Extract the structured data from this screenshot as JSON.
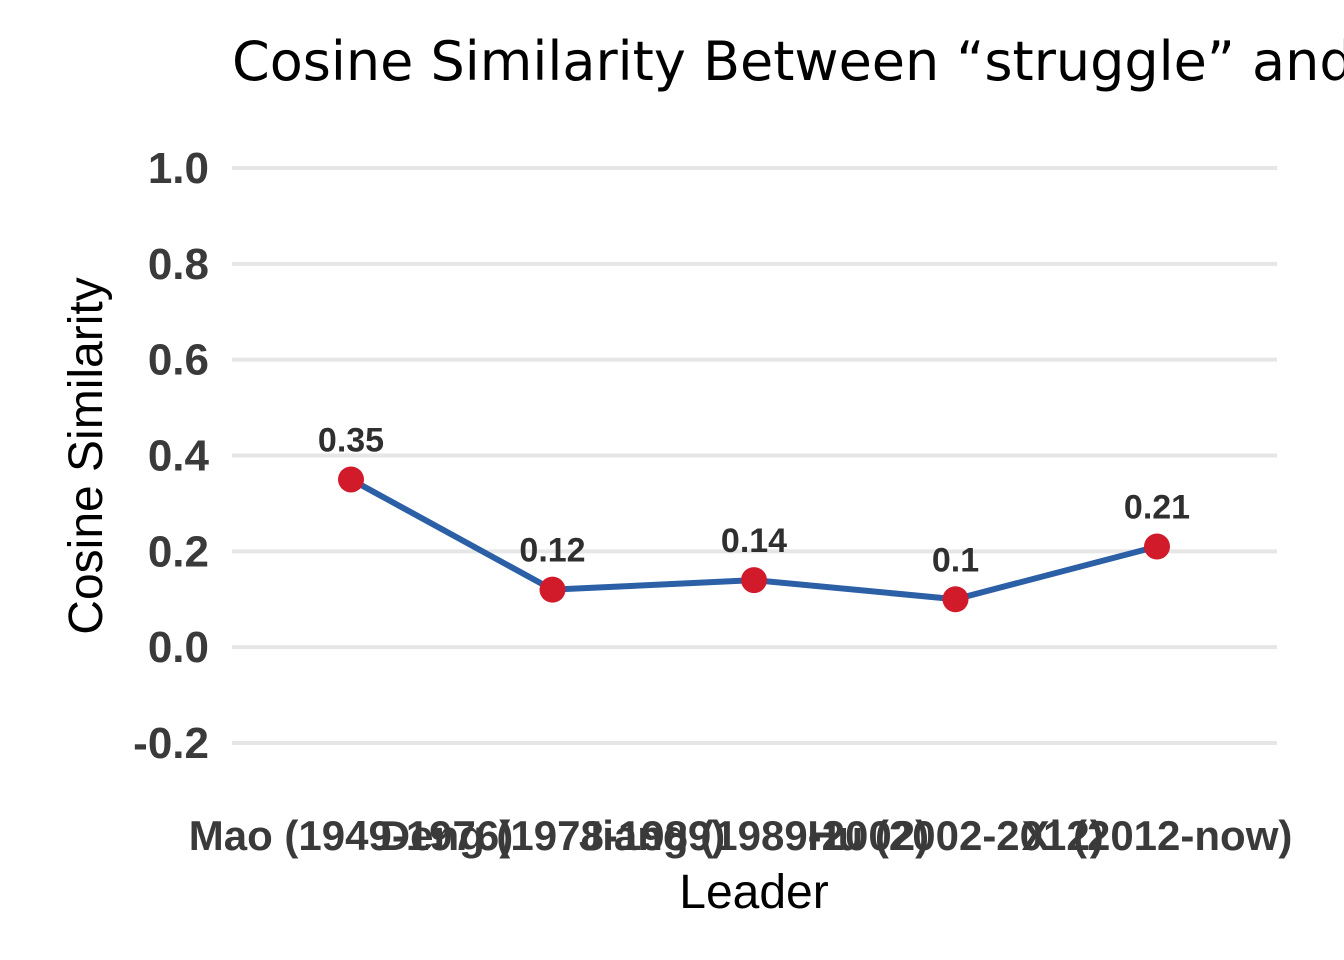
{
  "chart_data": {
    "type": "line",
    "title": "Cosine Similarity Between “struggle” and",
    "xlabel": "Leader",
    "ylabel": "Cosine Similarity",
    "categories": [
      "Mao (1949-1976)",
      "Deng (1978-1989)",
      "Jiang (1989-2002)",
      "Hu (2002-2012)",
      "Xi (2012-now)"
    ],
    "series": [
      {
        "values": [
          0.35,
          0.12,
          0.14,
          0.1,
          0.21
        ],
        "data_labels": [
          "0.35",
          "0.12",
          "0.14",
          "0.1",
          "0.21"
        ]
      }
    ],
    "yticks": [
      -0.2,
      0.0,
      0.2,
      0.4,
      0.6,
      0.8,
      1.0
    ],
    "ytick_labels": [
      "-0.2",
      "0.0",
      "0.2",
      "0.4",
      "0.6",
      "0.8",
      "1.0"
    ],
    "ylim": [
      -0.2,
      1.0
    ],
    "grid": "horizontal",
    "legend": "none",
    "colors": {
      "line": "#2b5fa6",
      "marker": "#d11a2a",
      "grid": "#e6e6e6"
    }
  }
}
